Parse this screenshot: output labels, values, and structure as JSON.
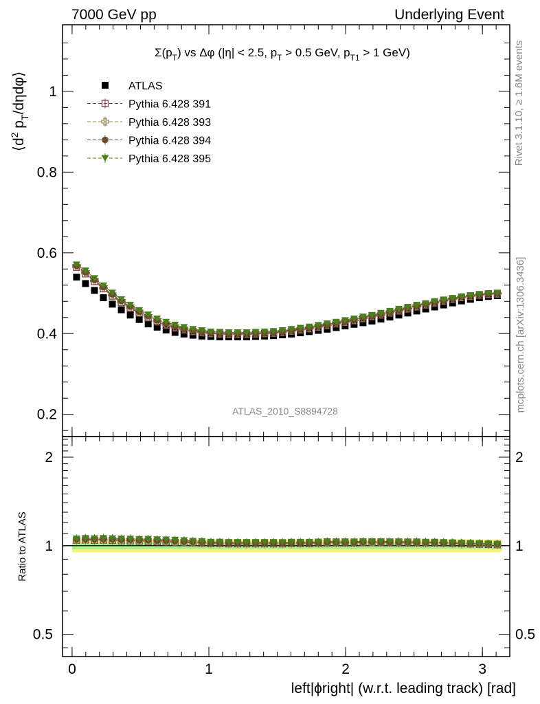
{
  "header": {
    "left": "7000 GeV pp",
    "right": "Underlying Event"
  },
  "chart_title": {
    "main": "Σ(p",
    "parts": [
      "Σ(p",
      "T",
      ") vs Δφ (|η| < 2.5, p",
      "T",
      " > 0.5 GeV, p",
      "T1",
      " > 1 GeV)"
    ]
  },
  "side_text": {
    "top": "Rivet 3.1.10, ≥ 1.6M events",
    "bottom": "mcplots.cern.ch [arXiv:1306.3436]"
  },
  "analysis_label": "ATLAS_2010_S8894728",
  "axes": {
    "ylabel_main": "⟨d² p_T/dηdφ⟩",
    "ylabel_main_parts": [
      "⟨d",
      "2",
      " p",
      "T",
      "/dηdφ⟩"
    ],
    "ylabel_ratio": "Ratio to ATLAS",
    "xlabel": "left|ϕright| (w.r.t. leading track) [rad]"
  },
  "chart_data": {
    "type": "scatter",
    "x_range": [
      -0.07,
      3.2
    ],
    "main": {
      "ylim": [
        0.145,
        1.165
      ],
      "yticks": [
        0.2,
        0.4,
        0.6,
        0.8,
        1.0
      ],
      "ytick_labels": [
        "0.2",
        "0.4",
        "0.6",
        "0.8",
        "1"
      ]
    },
    "ratio": {
      "ylim": [
        0.42,
        2.35
      ],
      "log": true,
      "yticks": [
        0.5,
        1,
        2
      ],
      "ytick_labels": [
        "0.5",
        "1",
        "2"
      ],
      "band_inner": [
        0.975,
        1.025
      ],
      "band_outer": [
        0.95,
        1.05
      ]
    },
    "xticks": [
      0,
      1,
      2,
      3
    ],
    "xtick_labels": [
      "0",
      "1",
      "2",
      "3"
    ],
    "x": [
      0.0327,
      0.0982,
      0.1636,
      0.2291,
      0.2945,
      0.36,
      0.4254,
      0.4909,
      0.5563,
      0.6218,
      0.6872,
      0.7527,
      0.8181,
      0.8836,
      0.949,
      1.0145,
      1.0799,
      1.1454,
      1.2108,
      1.2763,
      1.3417,
      1.4072,
      1.4726,
      1.5381,
      1.6035,
      1.669,
      1.7344,
      1.7999,
      1.8653,
      1.9308,
      1.9962,
      2.0617,
      2.1271,
      2.1926,
      2.258,
      2.3235,
      2.3889,
      2.4544,
      2.5198,
      2.5853,
      2.6507,
      2.7162,
      2.7816,
      2.8471,
      2.9125,
      2.978,
      3.0434,
      3.1089
    ],
    "series": [
      {
        "name": "ATLAS",
        "color": "#000000",
        "marker": "square-filled",
        "values": [
          0.54,
          0.524,
          0.507,
          0.489,
          0.473,
          0.459,
          0.446,
          0.435,
          0.424,
          0.416,
          0.409,
          0.403,
          0.399,
          0.396,
          0.394,
          0.393,
          0.392,
          0.392,
          0.392,
          0.392,
          0.393,
          0.394,
          0.395,
          0.397,
          0.399,
          0.402,
          0.405,
          0.408,
          0.411,
          0.415,
          0.419,
          0.423,
          0.427,
          0.431,
          0.436,
          0.441,
          0.446,
          0.451,
          0.456,
          0.461,
          0.466,
          0.471,
          0.476,
          0.481,
          0.485,
          0.489,
          0.492,
          0.494
        ]
      },
      {
        "name": "Pythia 6.428 391",
        "color": "#7a3a55",
        "marker": "square-open",
        "values": [
          0.564,
          0.548,
          0.529,
          0.511,
          0.493,
          0.477,
          0.463,
          0.451,
          0.439,
          0.429,
          0.421,
          0.414,
          0.409,
          0.405,
          0.402,
          0.4,
          0.399,
          0.398,
          0.398,
          0.398,
          0.399,
          0.4,
          0.401,
          0.403,
          0.406,
          0.409,
          0.412,
          0.416,
          0.42,
          0.424,
          0.428,
          0.432,
          0.437,
          0.442,
          0.446,
          0.451,
          0.456,
          0.461,
          0.466,
          0.471,
          0.476,
          0.481,
          0.485,
          0.489,
          0.492,
          0.495,
          0.497,
          0.498
        ]
      },
      {
        "name": "Pythia 6.428 393",
        "color": "#9b8453",
        "marker": "cross-open",
        "values": [
          0.566,
          0.55,
          0.531,
          0.513,
          0.495,
          0.479,
          0.465,
          0.452,
          0.441,
          0.431,
          0.423,
          0.416,
          0.411,
          0.406,
          0.403,
          0.401,
          0.4,
          0.399,
          0.399,
          0.399,
          0.4,
          0.401,
          0.402,
          0.404,
          0.407,
          0.41,
          0.413,
          0.417,
          0.421,
          0.425,
          0.429,
          0.433,
          0.438,
          0.443,
          0.447,
          0.452,
          0.457,
          0.462,
          0.467,
          0.472,
          0.477,
          0.481,
          0.486,
          0.49,
          0.493,
          0.496,
          0.498,
          0.499
        ]
      },
      {
        "name": "Pythia 6.428 394",
        "color": "#6b4a2e",
        "marker": "circle-filled",
        "values": [
          0.568,
          0.552,
          0.533,
          0.515,
          0.497,
          0.481,
          0.467,
          0.454,
          0.443,
          0.433,
          0.425,
          0.418,
          0.412,
          0.408,
          0.405,
          0.402,
          0.401,
          0.4,
          0.4,
          0.4,
          0.401,
          0.402,
          0.403,
          0.405,
          0.408,
          0.411,
          0.414,
          0.418,
          0.422,
          0.426,
          0.43,
          0.434,
          0.439,
          0.444,
          0.448,
          0.453,
          0.458,
          0.463,
          0.468,
          0.473,
          0.478,
          0.482,
          0.487,
          0.491,
          0.494,
          0.497,
          0.499,
          0.5
        ]
      },
      {
        "name": "Pythia 6.428 395",
        "color": "#4d7f1e",
        "marker": "triangle-down-filled",
        "values": [
          0.571,
          0.556,
          0.537,
          0.519,
          0.501,
          0.485,
          0.471,
          0.458,
          0.447,
          0.437,
          0.429,
          0.422,
          0.416,
          0.411,
          0.408,
          0.405,
          0.404,
          0.403,
          0.403,
          0.403,
          0.404,
          0.405,
          0.406,
          0.408,
          0.411,
          0.414,
          0.417,
          0.421,
          0.425,
          0.429,
          0.433,
          0.437,
          0.442,
          0.446,
          0.451,
          0.456,
          0.461,
          0.466,
          0.471,
          0.475,
          0.48,
          0.484,
          0.488,
          0.492,
          0.495,
          0.498,
          0.5,
          0.501
        ]
      }
    ]
  }
}
